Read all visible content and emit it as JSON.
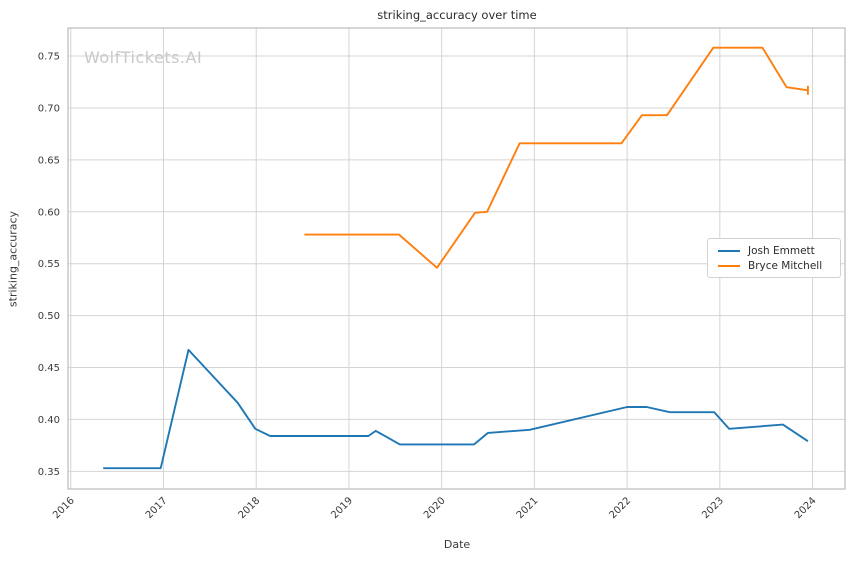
{
  "title": "striking_accuracy over time",
  "watermark": "WolfTickets.AI",
  "colors": {
    "background": "#ffffff",
    "grid": "#d4d4d4",
    "spine": "#bfbfbf",
    "tick_text": "#3a3a3a",
    "series_blue": "#1f77b4",
    "series_orange": "#ff7f0e"
  },
  "chart_data": {
    "type": "line",
    "title": "striking_accuracy over time",
    "xlabel": "Date",
    "ylabel": "striking_accuracy",
    "xlim": [
      2015.97,
      2024.35
    ],
    "ylim": [
      0.333,
      0.777
    ],
    "xticks": [
      2016,
      2017,
      2018,
      2019,
      2020,
      2021,
      2022,
      2023,
      2024
    ],
    "yticks": [
      0.35,
      0.4,
      0.45,
      0.5,
      0.55,
      0.6,
      0.65,
      0.7,
      0.75
    ],
    "grid": true,
    "legend_position": "center-right",
    "series": [
      {
        "name": "Josh Emmett",
        "color": "#1f77b4",
        "end_tick": false,
        "x": [
          2016.35,
          2016.97,
          2017.27,
          2017.8,
          2017.99,
          2018.15,
          2019.21,
          2019.29,
          2019.55,
          2020.35,
          2020.5,
          2020.95,
          2022.0,
          2022.21,
          2022.46,
          2022.94,
          2023.1,
          2023.68,
          2023.95
        ],
        "y": [
          0.353,
          0.353,
          0.467,
          0.416,
          0.391,
          0.384,
          0.384,
          0.389,
          0.376,
          0.376,
          0.387,
          0.39,
          0.412,
          0.412,
          0.407,
          0.407,
          0.391,
          0.395,
          0.379
        ]
      },
      {
        "name": "Bryce Mitchell",
        "color": "#ff7f0e",
        "end_tick": true,
        "x": [
          2018.52,
          2019.54,
          2019.95,
          2020.36,
          2020.49,
          2020.84,
          2021.94,
          2022.16,
          2022.43,
          2022.93,
          2023.46,
          2023.72,
          2023.95
        ],
        "y": [
          0.578,
          0.578,
          0.546,
          0.599,
          0.6,
          0.666,
          0.666,
          0.693,
          0.693,
          0.758,
          0.758,
          0.72,
          0.717
        ]
      }
    ]
  }
}
